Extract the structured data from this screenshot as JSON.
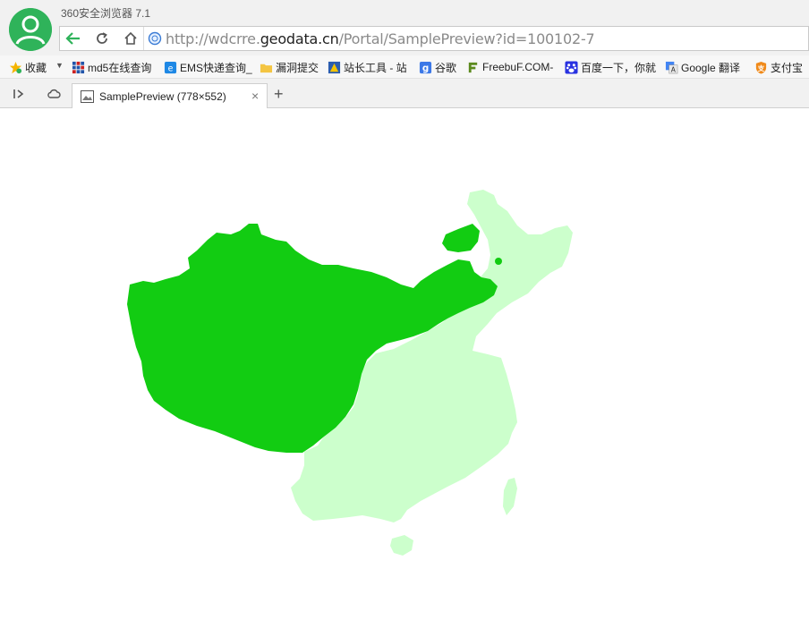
{
  "window": {
    "title": "360安全浏览器 7.1"
  },
  "address_bar": {
    "url_prefix": "http://wdcrre.",
    "url_domain": "geodata.cn",
    "url_path": "/Portal/SamplePreview?id=100102-7"
  },
  "bookmarks": [
    {
      "label": "收藏",
      "icon": "favorites-star-icon"
    },
    {
      "label": "md5在线查询",
      "icon": "grid-icon"
    },
    {
      "label": "EMS快递查询_",
      "icon": "ems-icon"
    },
    {
      "label": "漏洞提交",
      "icon": "folder-icon"
    },
    {
      "label": "站长工具 - 站",
      "icon": "webmaster-icon"
    },
    {
      "label": "谷歌",
      "icon": "google-g-icon"
    },
    {
      "label": "FreebuF.COM-",
      "icon": "freebuf-icon"
    },
    {
      "label": "百度一下，你就",
      "icon": "baidu-paw-icon"
    },
    {
      "label": "Google 翻译",
      "icon": "translate-icon"
    },
    {
      "label": "支付宝",
      "icon": "alipay-icon"
    }
  ],
  "tabs": [
    {
      "label": "SamplePreview (778×552)",
      "active": true
    }
  ],
  "colors": {
    "region_dark": "#12cc12",
    "region_light": "#ccffcc",
    "brand_green": "#2fb35a"
  }
}
